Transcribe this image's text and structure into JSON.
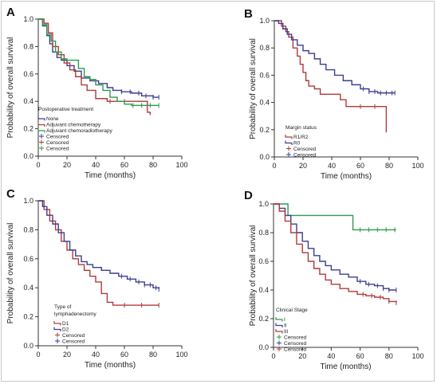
{
  "chart_data": [
    {
      "type": "line",
      "panel_label": "A",
      "ylabel": "Probability of overall survival",
      "xlabel": "Time (months)",
      "xlim": [
        0,
        100
      ],
      "ylim": [
        0.0,
        1.0
      ],
      "xticks": [
        "0",
        "20",
        "40",
        "60",
        "80",
        "100"
      ],
      "yticks": [
        "0.0",
        "0.2",
        "0.4",
        "0.6",
        "0.8",
        "1.0"
      ],
      "grid": false,
      "legend_position": "bottom-left",
      "legend_title": "Postoperative treatment",
      "legend": [
        {
          "label": "None",
          "color": "#3a3f8f",
          "marker": "line"
        },
        {
          "label": "Adjuvant chemotherapy",
          "color": "#b03a3a",
          "marker": "line"
        },
        {
          "label": "Adjuvant chemoradiotherapy",
          "color": "#2e9a4e",
          "marker": "line"
        },
        {
          "label": "Censored",
          "color": "#3a3f8f",
          "marker": "plus"
        },
        {
          "label": "Censored",
          "color": "#b03a3a",
          "marker": "plus"
        },
        {
          "label": "Censored",
          "color": "#2e9a4e",
          "marker": "plus"
        }
      ],
      "series": [
        {
          "color": "#3a3f8f",
          "x": [
            0,
            3,
            6,
            8,
            10,
            13,
            16,
            20,
            25,
            30,
            36,
            42,
            48,
            52,
            58,
            65,
            72,
            80,
            84
          ],
          "y": [
            1.0,
            0.95,
            0.88,
            0.82,
            0.76,
            0.72,
            0.7,
            0.66,
            0.62,
            0.57,
            0.55,
            0.53,
            0.5,
            0.48,
            0.47,
            0.46,
            0.44,
            0.43,
            0.43
          ],
          "censored_x": [
            58,
            64,
            70,
            75,
            80,
            84
          ]
        },
        {
          "color": "#b03a3a",
          "x": [
            0,
            4,
            7,
            10,
            14,
            18,
            22,
            26,
            30,
            34,
            40,
            48,
            55,
            62,
            70,
            76,
            78
          ],
          "y": [
            1.0,
            0.97,
            0.9,
            0.8,
            0.74,
            0.68,
            0.63,
            0.58,
            0.52,
            0.48,
            0.42,
            0.4,
            0.4,
            0.4,
            0.4,
            0.32,
            0.3
          ],
          "censored_x": [
            50,
            60
          ]
        },
        {
          "color": "#2e9a4e",
          "x": [
            0,
            3,
            6,
            9,
            12,
            16,
            20,
            24,
            28,
            32,
            36,
            40,
            45,
            50,
            55,
            60,
            65,
            72,
            84
          ],
          "y": [
            1.0,
            0.96,
            0.89,
            0.84,
            0.76,
            0.71,
            0.7,
            0.7,
            0.64,
            0.58,
            0.56,
            0.52,
            0.48,
            0.43,
            0.4,
            0.38,
            0.37,
            0.37,
            0.37
          ],
          "censored_x": [
            66,
            72,
            78,
            84
          ]
        }
      ]
    },
    {
      "type": "line",
      "panel_label": "B",
      "ylabel": "Probability of overall survival",
      "xlabel": "Time (months)",
      "xlim": [
        0,
        100
      ],
      "ylim": [
        0.0,
        1.0
      ],
      "xticks": [
        "0",
        "20",
        "40",
        "60",
        "80",
        "100"
      ],
      "yticks": [
        "0.0",
        "0.2",
        "0.4",
        "0.6",
        "0.8",
        "1.0"
      ],
      "grid": false,
      "legend_position": "bottom-left",
      "legend_title": "Margin status",
      "legend": [
        {
          "label": "R1/R2",
          "color": "#b03a3a",
          "marker": "line"
        },
        {
          "label": "R0",
          "color": "#3a3f8f",
          "marker": "line"
        },
        {
          "label": "Censored",
          "color": "#b03a3a",
          "marker": "plus"
        },
        {
          "label": "Censored",
          "color": "#3a3f8f",
          "marker": "plus"
        }
      ],
      "series": [
        {
          "color": "#b03a3a",
          "x": [
            0,
            5,
            8,
            10,
            13,
            16,
            18,
            20,
            22,
            24,
            28,
            32,
            36,
            40,
            46,
            50,
            56,
            62,
            70,
            76,
            78
          ],
          "y": [
            1.0,
            0.96,
            0.92,
            0.88,
            0.8,
            0.74,
            0.68,
            0.62,
            0.56,
            0.52,
            0.5,
            0.46,
            0.46,
            0.46,
            0.42,
            0.37,
            0.37,
            0.37,
            0.37,
            0.37,
            0.18
          ],
          "censored_x": [
            60,
            70
          ]
        },
        {
          "color": "#3a3f8f",
          "x": [
            0,
            3,
            6,
            9,
            12,
            16,
            20,
            24,
            28,
            32,
            36,
            42,
            48,
            54,
            60,
            66,
            72,
            78,
            84
          ],
          "y": [
            1.0,
            0.98,
            0.94,
            0.9,
            0.86,
            0.82,
            0.78,
            0.76,
            0.72,
            0.68,
            0.64,
            0.6,
            0.56,
            0.53,
            0.5,
            0.48,
            0.47,
            0.47,
            0.47
          ],
          "censored_x": [
            62,
            66,
            70,
            74,
            78,
            82,
            84
          ]
        }
      ]
    },
    {
      "type": "line",
      "panel_label": "C",
      "ylabel": "Probability of overall survival",
      "xlabel": "Time (months)",
      "xlim": [
        0,
        100
      ],
      "ylim": [
        0.0,
        1.0
      ],
      "xticks": [
        "0",
        "20",
        "40",
        "60",
        "80",
        "100"
      ],
      "yticks": [
        "0.0",
        "0.2",
        "0.4",
        "0.6",
        "0.8",
        "1.0"
      ],
      "grid": false,
      "legend_position": "bottom-left",
      "legend_title": "Type of lymphadenectomy",
      "legend": [
        {
          "label": "D1",
          "color": "#b03a3a",
          "marker": "line"
        },
        {
          "label": "D2",
          "color": "#3a3f8f",
          "marker": "line"
        },
        {
          "label": "Censored",
          "color": "#b03a3a",
          "marker": "plus"
        },
        {
          "label": "Censored",
          "color": "#3a3f8f",
          "marker": "plus"
        }
      ],
      "series": [
        {
          "color": "#b03a3a",
          "x": [
            0,
            4,
            8,
            12,
            16,
            20,
            24,
            28,
            32,
            36,
            40,
            44,
            48,
            52,
            58,
            64,
            70,
            76,
            84
          ],
          "y": [
            1.0,
            0.94,
            0.86,
            0.8,
            0.72,
            0.66,
            0.6,
            0.56,
            0.52,
            0.48,
            0.44,
            0.36,
            0.3,
            0.28,
            0.28,
            0.28,
            0.28,
            0.28,
            0.28
          ],
          "censored_x": [
            60,
            72,
            84
          ]
        },
        {
          "color": "#3a3f8f",
          "x": [
            0,
            3,
            6,
            10,
            14,
            18,
            22,
            26,
            30,
            34,
            38,
            44,
            50,
            56,
            62,
            68,
            74,
            80,
            84
          ],
          "y": [
            1.0,
            0.96,
            0.9,
            0.84,
            0.78,
            0.72,
            0.66,
            0.62,
            0.58,
            0.56,
            0.54,
            0.52,
            0.5,
            0.48,
            0.46,
            0.44,
            0.42,
            0.4,
            0.39
          ],
          "censored_x": [
            58,
            64,
            70,
            74,
            78,
            82,
            84
          ]
        }
      ]
    },
    {
      "type": "line",
      "panel_label": "D",
      "ylabel": "Probability of overall survival",
      "xlabel": "Time (months)",
      "xlim": [
        0,
        100
      ],
      "ylim": [
        0.0,
        1.0
      ],
      "xticks": [
        "0",
        "20",
        "40",
        "60",
        "80",
        "100"
      ],
      "yticks": [
        "0.0",
        "0.2",
        "0.4",
        "0.6",
        "0.8",
        "1.0"
      ],
      "grid": false,
      "legend_position": "bottom-left",
      "legend_title": "Clinical Stage",
      "legend": [
        {
          "label": "I",
          "color": "#2e9a4e",
          "marker": "line"
        },
        {
          "label": "II",
          "color": "#3a3f8f",
          "marker": "line"
        },
        {
          "label": "III",
          "color": "#b03a3a",
          "marker": "line"
        },
        {
          "label": "Censored",
          "color": "#2e9a4e",
          "marker": "plus"
        },
        {
          "label": "Censored",
          "color": "#3a3f8f",
          "marker": "plus"
        },
        {
          "label": "Censored",
          "color": "#b03a3a",
          "marker": "plus"
        }
      ],
      "series": [
        {
          "color": "#2e9a4e",
          "x": [
            0,
            8,
            10,
            20,
            30,
            40,
            50,
            53,
            55,
            60,
            70,
            80,
            85
          ],
          "y": [
            1.0,
            1.0,
            0.92,
            0.92,
            0.92,
            0.92,
            0.92,
            0.92,
            0.82,
            0.82,
            0.82,
            0.82,
            0.82
          ],
          "censored_x": [
            60,
            66,
            72,
            78,
            84
          ]
        },
        {
          "color": "#3a3f8f",
          "x": [
            0,
            4,
            8,
            12,
            16,
            20,
            24,
            28,
            32,
            36,
            40,
            46,
            52,
            58,
            64,
            70,
            76,
            80,
            85
          ],
          "y": [
            1.0,
            0.97,
            0.92,
            0.86,
            0.8,
            0.74,
            0.69,
            0.64,
            0.6,
            0.57,
            0.54,
            0.51,
            0.49,
            0.46,
            0.44,
            0.43,
            0.41,
            0.4,
            0.4
          ],
          "censored_x": [
            60,
            66,
            72,
            76,
            80,
            85
          ]
        },
        {
          "color": "#b03a3a",
          "x": [
            0,
            4,
            8,
            12,
            16,
            20,
            24,
            28,
            32,
            36,
            40,
            46,
            52,
            58,
            64,
            70,
            76,
            80,
            85
          ],
          "y": [
            1.0,
            0.95,
            0.88,
            0.8,
            0.72,
            0.66,
            0.6,
            0.55,
            0.51,
            0.47,
            0.44,
            0.41,
            0.39,
            0.37,
            0.36,
            0.35,
            0.34,
            0.32,
            0.31
          ],
          "censored_x": [
            62,
            68,
            74,
            80,
            85
          ]
        }
      ]
    }
  ]
}
